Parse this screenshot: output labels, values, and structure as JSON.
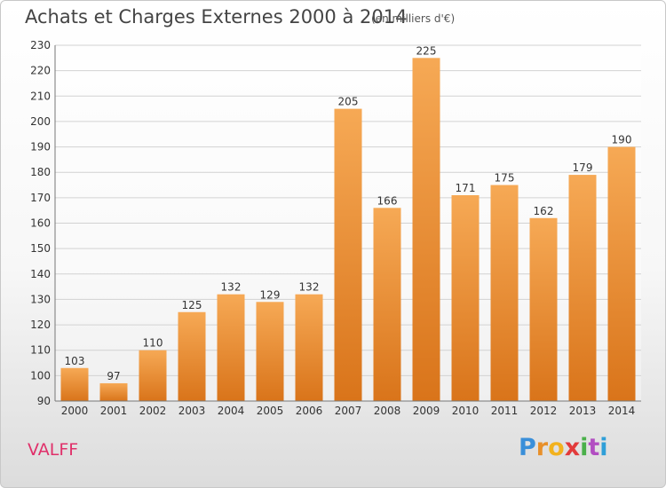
{
  "header": {
    "title": "Achats et Charges Externes 2000 à 2014",
    "subtitle": "(en milliers d'€)"
  },
  "footer": {
    "commune": "VALFF",
    "logo": "Proxiti"
  },
  "colors": {
    "bar": "#f09a40",
    "commune": "#e0306a"
  },
  "chart_data": {
    "type": "bar",
    "title": "Achats et Charges Externes 2000 à 2014",
    "subtitle": "(en milliers d'€)",
    "categories": [
      "2000",
      "2001",
      "2002",
      "2003",
      "2004",
      "2005",
      "2006",
      "2007",
      "2008",
      "2009",
      "2010",
      "2011",
      "2012",
      "2013",
      "2014"
    ],
    "values": [
      103,
      97,
      110,
      125,
      132,
      129,
      132,
      205,
      166,
      225,
      171,
      175,
      162,
      179,
      190
    ],
    "ylim": [
      90,
      230
    ],
    "yticks": [
      90,
      100,
      110,
      120,
      130,
      140,
      150,
      160,
      170,
      180,
      190,
      200,
      210,
      220,
      230
    ],
    "grid": true
  }
}
